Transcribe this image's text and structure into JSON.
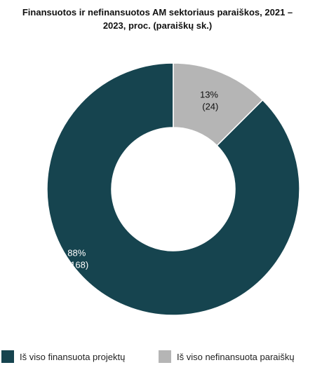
{
  "chart_data": {
    "type": "pie",
    "title_lines": [
      "Finansuotos ir nefinansuotos AM sektoriaus paraiškos, 2021  –",
      "2023, proc. (paraiškų sk.)"
    ],
    "donut": true,
    "slices": [
      {
        "name": "Iš viso finansuota projektų",
        "percent_label": "88%",
        "count_label": "(168)",
        "count": 168,
        "color": "#16444f",
        "label_color": "#ffffff"
      },
      {
        "name": "Iš viso nefinansuota paraiškų",
        "percent_label": "13%",
        "count_label": "(24)",
        "count": 24,
        "color": "#b5b5b5",
        "label_color": "#111111"
      }
    ],
    "legend_position": "bottom"
  }
}
